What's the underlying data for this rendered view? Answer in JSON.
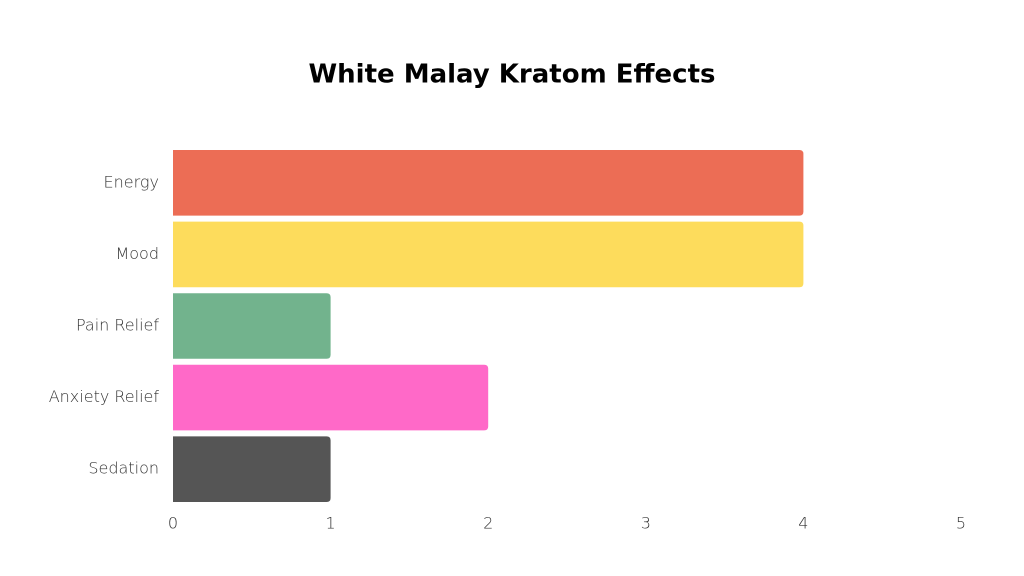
{
  "chart_data": {
    "type": "bar",
    "orientation": "horizontal",
    "title": "White Malay Kratom Effects",
    "categories": [
      "Energy",
      "Mood",
      "Pain Relief",
      "Anxiety Relief",
      "Sedation"
    ],
    "values": [
      4,
      4,
      1,
      2,
      1
    ],
    "colors": [
      "#ec6d55",
      "#fddc5c",
      "#72b38d",
      "#ff69c8",
      "#555555"
    ],
    "xlim": [
      0,
      5
    ],
    "xticks": [
      0,
      1,
      2,
      3,
      4,
      5
    ],
    "grid": false
  }
}
